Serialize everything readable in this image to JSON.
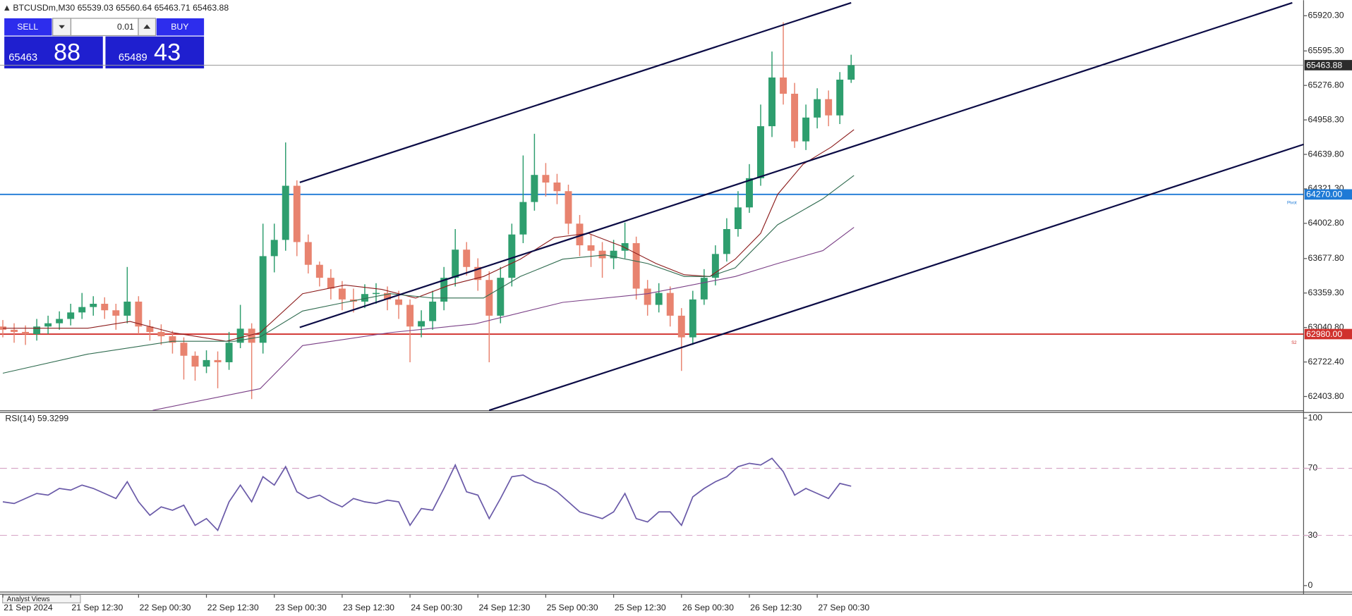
{
  "chart_data": [
    {
      "type": "candlestick",
      "title": "BTCUSDm,M30 65539.03 65560.64 65463.71 65463.88",
      "x": [
        0,
        4,
        8,
        12,
        16,
        20,
        24,
        28,
        32,
        36,
        40,
        44,
        48,
        52,
        56,
        60,
        64,
        68,
        72,
        76,
        80,
        84,
        88,
        92,
        96,
        100,
        104,
        108,
        112,
        116,
        120,
        124,
        128,
        132,
        136,
        140,
        144,
        148,
        152,
        156,
        160,
        164,
        168,
        172,
        176,
        180,
        184,
        188,
        192,
        196,
        200,
        204,
        208,
        212,
        216,
        220,
        224,
        228,
        232,
        236,
        240,
        244,
        248,
        252,
        256,
        260,
        264,
        268,
        272,
        276,
        280,
        284,
        288,
        292,
        296,
        300
      ],
      "open": [
        63050,
        63020,
        63000,
        62980,
        63050,
        63080,
        63120,
        63180,
        63230,
        63260,
        63200,
        63150,
        63280,
        63050,
        63000,
        62960,
        62900,
        62780,
        62680,
        62740,
        62720,
        62900,
        63030,
        62900,
        63700,
        63850,
        64350,
        63830,
        63620,
        63500,
        63400,
        63300,
        63280,
        63350,
        63360,
        63300,
        63250,
        63050,
        63100,
        63280,
        63500,
        63760,
        63600,
        63480,
        63150,
        63500,
        63900,
        64200,
        64450,
        64380,
        64300,
        64000,
        63800,
        63750,
        63680,
        63750,
        63820,
        63400,
        63250,
        63360,
        63150,
        62950,
        63300,
        63500,
        63720,
        63950,
        64150,
        64420,
        64900,
        65350,
        65200,
        64760,
        64980,
        65150,
        65000,
        65330
      ],
      "high": [
        63110,
        63080,
        63060,
        63120,
        63150,
        63190,
        63260,
        63360,
        63330,
        63320,
        63260,
        63600,
        63330,
        63110,
        63070,
        63010,
        62950,
        62820,
        62830,
        62820,
        63000,
        63250,
        63080,
        64000,
        64000,
        64750,
        64400,
        63900,
        63650,
        63580,
        63470,
        63400,
        63440,
        63450,
        63420,
        63380,
        63300,
        63200,
        63380,
        63600,
        63950,
        63830,
        63680,
        63560,
        63600,
        64000,
        64630,
        64830,
        64560,
        64460,
        64360,
        64080,
        63900,
        63830,
        63850,
        64010,
        63880,
        63480,
        63450,
        63420,
        63220,
        63380,
        63580,
        63800,
        64050,
        64300,
        64550,
        65100,
        65590,
        65860,
        65300,
        65100,
        65250,
        65230,
        65400,
        65560.64
      ],
      "low": [
        62950,
        62900,
        62880,
        62920,
        62980,
        63020,
        63060,
        63120,
        63150,
        63120,
        63020,
        63080,
        62980,
        62920,
        62880,
        62800,
        62560,
        62550,
        62620,
        62480,
        62650,
        62850,
        62380,
        62800,
        63550,
        63750,
        63700,
        63540,
        63420,
        63300,
        63200,
        63180,
        63220,
        63260,
        63200,
        63120,
        62720,
        62950,
        63020,
        63200,
        63420,
        63520,
        63380,
        62720,
        63080,
        63420,
        63820,
        64120,
        64250,
        64180,
        63900,
        63700,
        63600,
        63500,
        63580,
        63680,
        63300,
        63150,
        63180,
        63050,
        62640,
        62880,
        63250,
        63430,
        63650,
        63880,
        64100,
        64350,
        64800,
        65100,
        64700,
        64680,
        64880,
        64900,
        64920,
        65300
      ],
      "close": [
        63020,
        63000,
        62980,
        63050,
        63080,
        63120,
        63180,
        63230,
        63260,
        63200,
        63150,
        63280,
        63050,
        63000,
        62960,
        62900,
        62780,
        62680,
        62740,
        62720,
        62900,
        63030,
        62900,
        63700,
        63850,
        64350,
        63830,
        63620,
        63500,
        63400,
        63300,
        63280,
        63350,
        63360,
        63300,
        63250,
        63050,
        63100,
        63280,
        63500,
        63760,
        63600,
        63480,
        63150,
        63500,
        63900,
        64200,
        64450,
        64380,
        64300,
        64000,
        63800,
        63750,
        63680,
        63750,
        63820,
        63400,
        63250,
        63360,
        63150,
        62950,
        63300,
        63500,
        63720,
        63950,
        64150,
        64420,
        64900,
        65350,
        65200,
        64760,
        64980,
        65150,
        65000,
        65330,
        65463.88
      ],
      "up_color": "#2e9e6e",
      "down_color": "#e8836f",
      "series": [
        {
          "color": "#8b1a1a",
          "x": [
            0,
            30,
            45,
            60,
            79,
            91,
            106,
            121,
            134,
            146,
            158,
            170,
            183,
            195,
            207,
            219,
            231,
            241,
            250,
            259,
            268,
            274,
            283,
            293,
            301
          ],
          "values": [
            63034,
            63034,
            63097,
            62994,
            62914,
            62994,
            63353,
            63433,
            63393,
            63313,
            63433,
            63512,
            63672,
            63871,
            63911,
            63791,
            63632,
            63528,
            63512,
            63672,
            63911,
            64270,
            64549,
            64708,
            64868
          ]
        },
        {
          "color": "#2f6b4f",
          "x": [
            0,
            30,
            60,
            82,
            91,
            106,
            121,
            137,
            152,
            170,
            183,
            198,
            213,
            228,
            241,
            250,
            259,
            274,
            290,
            301
          ],
          "values": [
            62619,
            62795,
            62914,
            62914,
            62954,
            63193,
            63273,
            63353,
            63313,
            63313,
            63512,
            63672,
            63711,
            63632,
            63512,
            63512,
            63592,
            63990,
            64230,
            64445
          ]
        },
        {
          "color": "#7a3f86",
          "x": [
            53,
            91,
            106,
            137,
            167,
            198,
            228,
            259,
            274,
            290,
            301
          ],
          "values": [
            62276,
            62476,
            62874,
            62994,
            63074,
            63273,
            63353,
            63512,
            63632,
            63751,
            63966
          ]
        }
      ],
      "trendlines": [
        {
          "color": "#0b0b45",
          "x": [
            105,
            300
          ],
          "values": [
            64381,
            66040
          ]
        },
        {
          "color": "#0b0b45",
          "x": [
            105,
            456
          ],
          "values": [
            63042,
            66040
          ]
        },
        {
          "color": "#0b0b45",
          "x": [
            172,
            460
          ],
          "values": [
            62276,
            64732
          ]
        }
      ],
      "levels": [
        {
          "value": 65463.88,
          "color": "#9a9a9a",
          "label_color": "#2b2b2b"
        },
        {
          "value": 64270,
          "label": "64270.00",
          "name": "Pivot",
          "color": "#1e7ad6",
          "label_color": "#1e7ad6"
        },
        {
          "value": 62980,
          "label": "62980.00",
          "name": "S2",
          "color": "#d0312d",
          "label_color": "#d0312d"
        }
      ],
      "xlim": [
        -1,
        460
      ],
      "ylim": [
        62276,
        66064
      ],
      "yticks": [
        {
          "value": 62403.8,
          "label": "62403.80"
        },
        {
          "value": 62722.4,
          "label": "62722.40"
        },
        {
          "value": 63040.8,
          "label": "63040.80"
        },
        {
          "value": 63359.3,
          "label": "63359.30"
        },
        {
          "value": 63677.8,
          "label": "63677.80"
        },
        {
          "value": 64002.8,
          "label": "64002.80"
        },
        {
          "value": 64321.3,
          "label": "64321.30"
        },
        {
          "value": 64639.8,
          "label": "64639.80"
        },
        {
          "value": 64958.3,
          "label": "64958.30"
        },
        {
          "value": 65276.8,
          "label": "65276.80"
        },
        {
          "value": 65595.3,
          "label": "65595.30"
        },
        {
          "value": 65920.3,
          "label": "65920.30"
        }
      ],
      "xticks": [
        {
          "value": 0,
          "label": "21 Sep 2024"
        },
        {
          "value": 24,
          "label": "21 Sep 12:30"
        },
        {
          "value": 48,
          "label": "22 Sep 00:30"
        },
        {
          "value": 72,
          "label": "22 Sep 12:30"
        },
        {
          "value": 96,
          "label": "23 Sep 00:30"
        },
        {
          "value": 120,
          "label": "23 Sep 12:30"
        },
        {
          "value": 144,
          "label": "24 Sep 00:30"
        },
        {
          "value": 168,
          "label": "24 Sep 12:30"
        },
        {
          "value": 192,
          "label": "25 Sep 00:30"
        },
        {
          "value": 216,
          "label": "25 Sep 12:30"
        },
        {
          "value": 240,
          "label": "26 Sep 00:30"
        },
        {
          "value": 264,
          "label": "26 Sep 12:30"
        },
        {
          "value": 288,
          "label": "27 Sep 00:30"
        }
      ]
    },
    {
      "type": "line",
      "title": "RSI(14) 59.3299",
      "color": "#6a5aa8",
      "x": [
        0,
        4,
        8,
        12,
        16,
        20,
        24,
        28,
        32,
        36,
        40,
        44,
        48,
        52,
        56,
        60,
        64,
        68,
        72,
        76,
        80,
        84,
        88,
        92,
        96,
        100,
        104,
        108,
        112,
        116,
        120,
        124,
        128,
        132,
        136,
        140,
        144,
        148,
        152,
        156,
        160,
        164,
        168,
        172,
        176,
        180,
        184,
        188,
        192,
        196,
        200,
        204,
        208,
        212,
        216,
        220,
        224,
        228,
        232,
        236,
        240,
        244,
        248,
        252,
        256,
        260,
        264,
        268,
        272,
        276,
        280,
        284,
        288,
        292,
        296,
        300
      ],
      "values": [
        50,
        49,
        52,
        55,
        54,
        58,
        57,
        60,
        58,
        55,
        52,
        62,
        50,
        42,
        47,
        45,
        48,
        36,
        40,
        33,
        50,
        60,
        50,
        65,
        60,
        71,
        56,
        52,
        54,
        50,
        47,
        52,
        50,
        49,
        51,
        50,
        36,
        46,
        45,
        58,
        72,
        56,
        54,
        40,
        52,
        65,
        66,
        62,
        60,
        56,
        50,
        44,
        42,
        40,
        44,
        55,
        40,
        38,
        44,
        44,
        36,
        53,
        58,
        62,
        65,
        71,
        73,
        72,
        76,
        68,
        54,
        58,
        55,
        52,
        61,
        59.3299
      ],
      "levels": [
        30,
        70
      ],
      "level_color": "#d8a8c8",
      "xlim": [
        -1,
        460
      ],
      "ylim": [
        0,
        100
      ],
      "yticks": [
        0,
        30,
        70,
        100
      ]
    }
  ],
  "trade_panel": {
    "sell": "SELL",
    "lot": "0.01",
    "buy": "BUY",
    "bid": "65463",
    "bid_pips": "88",
    "ask": "65489",
    "ask_pips": "43"
  },
  "tab_label": "Analyst Views"
}
